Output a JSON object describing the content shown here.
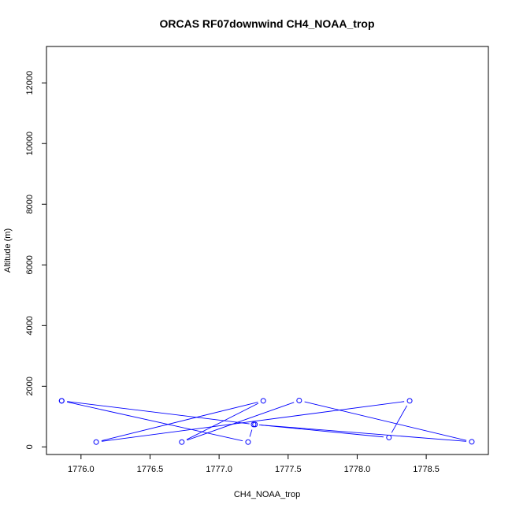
{
  "chart_data": {
    "type": "line",
    "title": "ORCAS RF07downwind CH4_NOAA_trop",
    "xlabel": "CH4_NOAA_trop",
    "ylabel": "Altitude (m)",
    "xlim": [
      1775.75,
      1778.95
    ],
    "ylim": [
      -250,
      13200
    ],
    "x_ticks": [
      1776.0,
      1776.5,
      1777.0,
      1777.5,
      1778.0,
      1778.5
    ],
    "x_tick_labels": [
      "1776.0",
      "1776.5",
      "1777.0",
      "1777.5",
      "1778.0",
      "1778.5"
    ],
    "y_ticks": [
      0,
      2000,
      4000,
      6000,
      8000,
      10000,
      12000
    ],
    "y_tick_labels": [
      "0",
      "2000",
      "4000",
      "6000",
      "8000",
      "10000",
      "12000"
    ],
    "grid": false,
    "series": [
      {
        "color": "#0000ff",
        "marker": "open-circle",
        "x": [
          1775.86,
          1777.21,
          1777.25,
          1778.83,
          1777.58,
          1776.73,
          1777.32,
          1776.11,
          1778.38,
          1778.23,
          1777.26,
          1775.86
        ],
        "y": [
          1520,
          160,
          740,
          170,
          1530,
          160,
          1520,
          160,
          1520,
          310,
          740,
          1520
        ]
      }
    ]
  }
}
